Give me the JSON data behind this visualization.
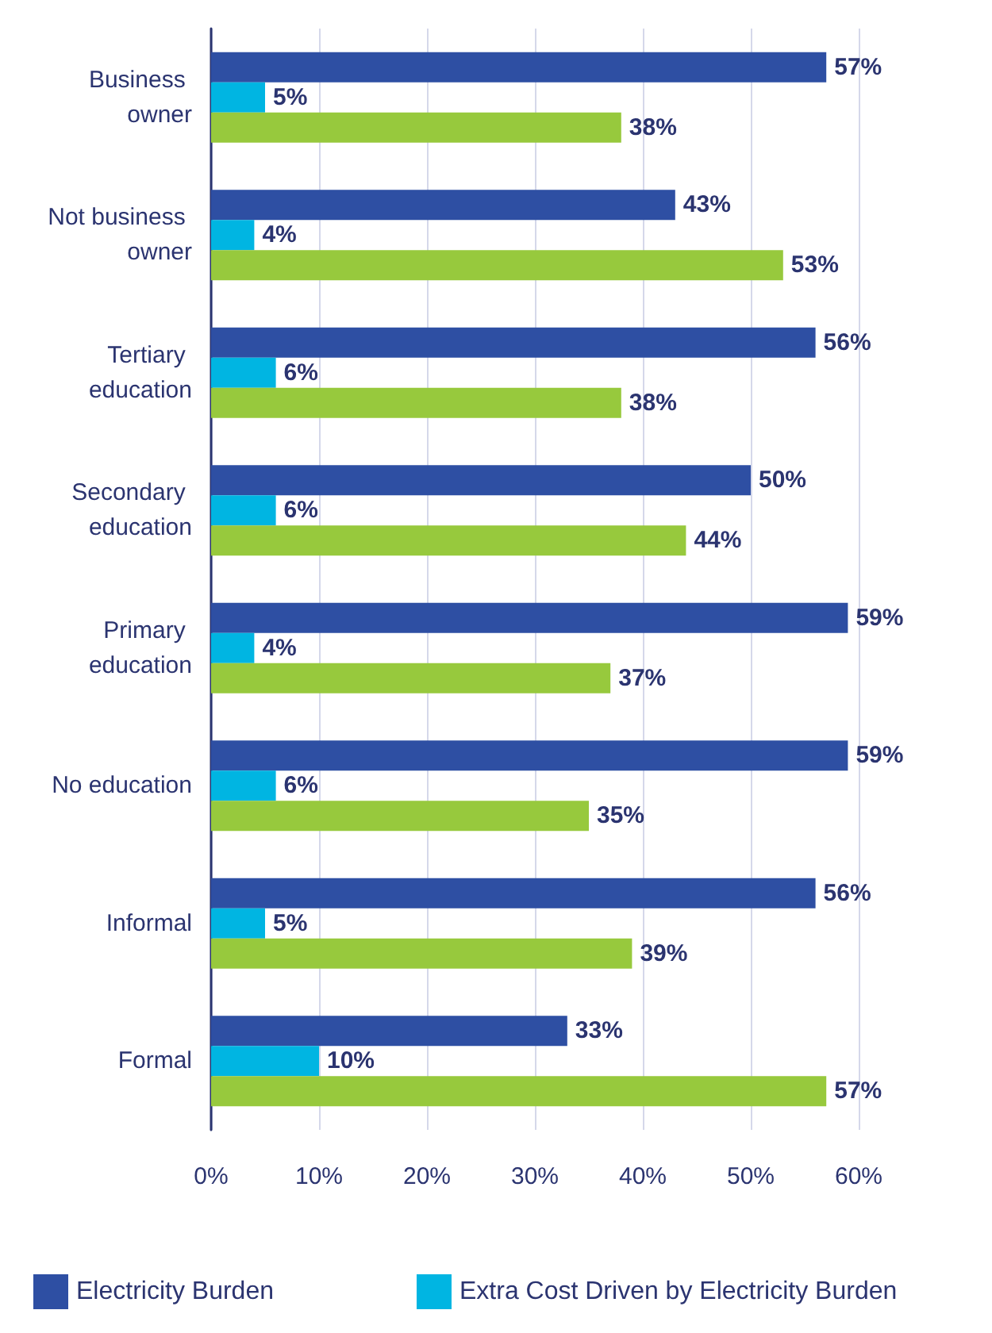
{
  "chart_data": {
    "type": "bar",
    "orientation": "horizontal",
    "categories": [
      "Business owner",
      "Not business owner",
      "Tertiary education",
      "Secondary education",
      "Primary education",
      "No education",
      "Informal",
      "Formal"
    ],
    "series": [
      {
        "name": "Electricity Burden",
        "color": "#2e4fa3",
        "values": [
          57,
          43,
          56,
          50,
          59,
          59,
          56,
          33
        ],
        "value_labels": [
          "57%",
          "43%",
          "56%",
          "50%",
          "59%",
          "59%",
          "56%",
          "33%"
        ]
      },
      {
        "name": "Extra Cost Driven by Electricity Burden",
        "color": "#00b5e2",
        "values": [
          5,
          4,
          6,
          6,
          4,
          6,
          5,
          10
        ],
        "value_labels": [
          "5%",
          "4%",
          "6%",
          "6%",
          "4%",
          "6%",
          "5%",
          "10%"
        ]
      },
      {
        "color": "#97c93d",
        "values": [
          38,
          53,
          38,
          44,
          37,
          35,
          39,
          57
        ],
        "value_labels": [
          "38%",
          "53%",
          "38%",
          "44%",
          "37%",
          "35%",
          "39%",
          "57%"
        ]
      }
    ],
    "xlim": [
      0,
      60
    ],
    "xticks": [
      {
        "value": 0,
        "label": "0%"
      },
      {
        "value": 10,
        "label": "10%"
      },
      {
        "value": 20,
        "label": "20%"
      },
      {
        "value": 30,
        "label": "30%"
      },
      {
        "value": 40,
        "label": "40%"
      },
      {
        "value": 50,
        "label": "50%"
      },
      {
        "value": 60,
        "label": "60%"
      }
    ],
    "grid": "x",
    "legend": "bottom left"
  }
}
